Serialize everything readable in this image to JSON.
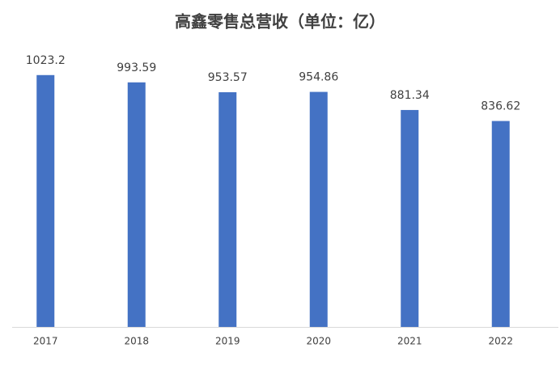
{
  "chart_data": {
    "type": "bar",
    "title": "高鑫零售总营收（单位：亿）",
    "categories": [
      "2017",
      "2018",
      "2019",
      "2020",
      "2021",
      "2022"
    ],
    "values": [
      1023.2,
      993.59,
      953.57,
      954.86,
      881.34,
      836.62
    ],
    "color": "#4472c4",
    "ylim": [
      0,
      1200
    ],
    "grid": false
  }
}
